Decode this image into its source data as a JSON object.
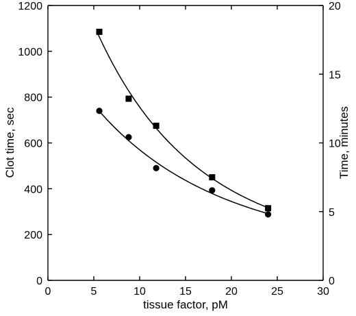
{
  "chart_data": {
    "type": "scatter",
    "title": "",
    "xlabel": "tissue factor, pM",
    "ylabel": "Clot time, sec",
    "y2label": "Time, minutes",
    "xlim": [
      0,
      30
    ],
    "ylim": [
      0,
      1200
    ],
    "y2lim": [
      0,
      20
    ],
    "grid": false,
    "x_ticks": [
      "0",
      "5",
      "10",
      "15",
      "20",
      "25",
      "30"
    ],
    "y_ticks": [
      "0",
      "200",
      "400",
      "600",
      "800",
      "1000",
      "1200"
    ],
    "y2_ticks": [
      "0",
      "5",
      "10",
      "15",
      "20"
    ],
    "series": [
      {
        "marker": "square",
        "color": "#000000",
        "points": [
          {
            "x": 5.6,
            "y": 1085
          },
          {
            "x": 8.8,
            "y": 793
          },
          {
            "x": 11.8,
            "y": 675
          },
          {
            "x": 17.9,
            "y": 450
          },
          {
            "x": 24.0,
            "y": 315
          }
        ]
      },
      {
        "marker": "circle",
        "color": "#000000",
        "points": [
          {
            "x": 5.6,
            "y": 740
          },
          {
            "x": 8.8,
            "y": 625
          },
          {
            "x": 11.8,
            "y": 490
          },
          {
            "x": 17.9,
            "y": 393
          },
          {
            "x": 24.0,
            "y": 288
          }
        ]
      }
    ],
    "fit_curves": [
      {
        "series_index": 0,
        "x_range": [
          5.5,
          24.0
        ]
      },
      {
        "series_index": 1,
        "x_range": [
          5.5,
          24.0
        ]
      }
    ]
  }
}
